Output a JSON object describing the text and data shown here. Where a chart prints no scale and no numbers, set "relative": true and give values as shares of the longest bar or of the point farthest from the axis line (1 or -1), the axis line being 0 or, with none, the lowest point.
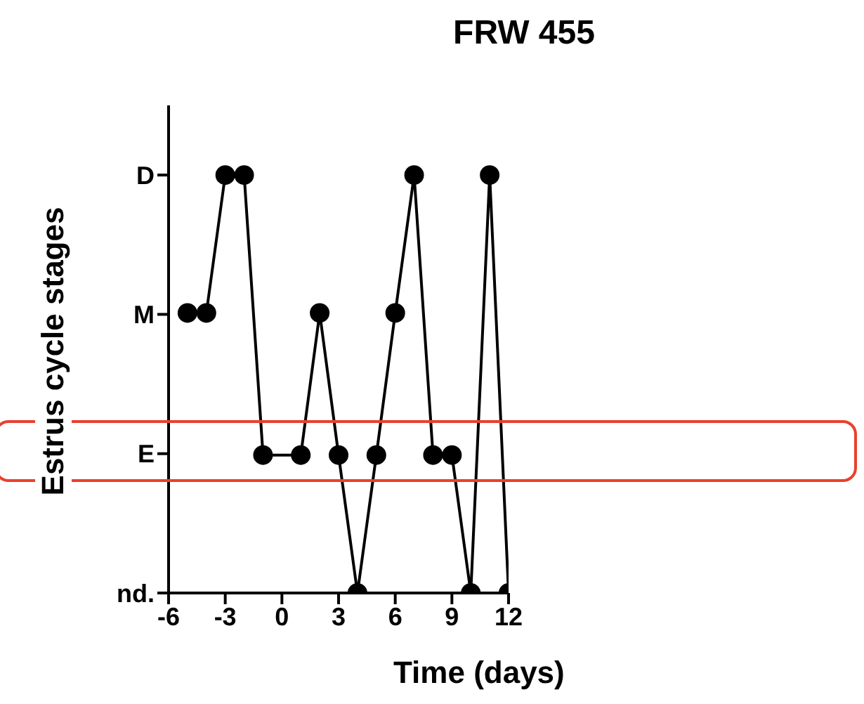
{
  "chart_data": {
    "type": "line",
    "title": "FRW 455",
    "xlabel": "Time (days)",
    "ylabel": "Estrus cycle stages",
    "x": [
      -5,
      -4,
      -3,
      -2,
      -1,
      1,
      2,
      3,
      4,
      5,
      6,
      7,
      8,
      9,
      10,
      11,
      12
    ],
    "relative": true,
    "series": [
      {
        "color": "#000000",
        "values": [
          0.67,
          0.67,
          1,
          1,
          0.33,
          0.33,
          0.67,
          0.33,
          0,
          0.33,
          0.67,
          1,
          0.33,
          0.33,
          0,
          1,
          0
        ]
      }
    ],
    "xlim": [
      -6,
      12
    ],
    "xticks": [
      -6,
      -3,
      0,
      3,
      6,
      9,
      12
    ],
    "annotations": [
      "nd.",
      "E",
      "M",
      "D"
    ],
    "grid": false,
    "legend": false,
    "marker": "circle",
    "line_style": "solid"
  }
}
